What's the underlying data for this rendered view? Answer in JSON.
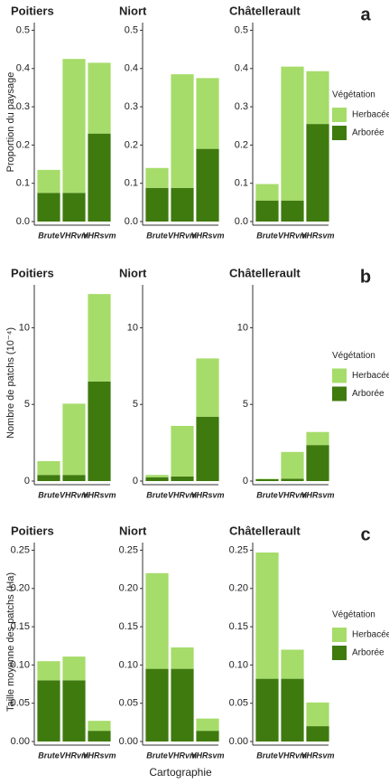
{
  "chart_data": [
    {
      "type": "bar",
      "stacked": true,
      "panel": "a",
      "ylabel": "Proportion du paysage",
      "facets": [
        "Poitiers",
        "Niort",
        "Châtellerault"
      ],
      "categories": [
        "Brute",
        "VHRvm",
        "VHRsvm"
      ],
      "ylim": [
        0,
        0.52
      ],
      "yticks": [
        {
          "value": 0,
          "label": "0.0"
        },
        0.1,
        0.2,
        0.3,
        0.4,
        0.5
      ],
      "legend_title": "Végétation",
      "series": [
        {
          "name": "Arborée",
          "color": "#3f7a0f",
          "values": [
            [
              0.075,
              0.075,
              0.23
            ],
            [
              0.088,
              0.088,
              0.19
            ],
            [
              0.055,
              0.055,
              0.255
            ]
          ]
        },
        {
          "name": "Herbacée",
          "color": "#a6dc6a",
          "values": [
            [
              0.06,
              0.35,
              0.185
            ],
            [
              0.052,
              0.297,
              0.185
            ],
            [
              0.043,
              0.35,
              0.138
            ]
          ]
        }
      ]
    },
    {
      "type": "bar",
      "stacked": true,
      "panel": "b",
      "ylabel": "Nombre de patchs (10⁻⁴)",
      "facets": [
        "Poitiers",
        "Niort",
        "Châtellerault"
      ],
      "categories": [
        "Brute",
        "VHRvm",
        "VHRsvm"
      ],
      "ylim": [
        0,
        12.8
      ],
      "yticks": [
        0,
        5,
        10
      ],
      "legend_title": "Végétation",
      "series": [
        {
          "name": "Arborée",
          "color": "#3f7a0f",
          "values": [
            [
              0.4,
              0.4,
              6.5
            ],
            [
              0.25,
              0.3,
              4.2
            ],
            [
              0.12,
              0.15,
              2.35
            ]
          ]
        },
        {
          "name": "Herbacée",
          "color": "#a6dc6a",
          "values": [
            [
              0.9,
              4.65,
              5.7
            ],
            [
              0.15,
              3.3,
              3.8
            ],
            [
              0.03,
              1.75,
              0.85
            ]
          ]
        }
      ]
    },
    {
      "type": "bar",
      "stacked": true,
      "panel": "c",
      "ylabel": "Taille moyenne des patchs (Ha)",
      "xlabel": "Cartographie",
      "facets": [
        "Poitiers",
        "Niort",
        "Châtellerault"
      ],
      "categories": [
        "Brute",
        "VHRvm",
        "VHRsvm"
      ],
      "ylim": [
        0,
        0.26
      ],
      "yticks": [
        {
          "value": 0,
          "label": "0.00"
        },
        0.05,
        {
          "value": 0.1,
          "label": "0.10"
        },
        0.15,
        {
          "value": 0.2,
          "label": "0.20"
        },
        0.25
      ],
      "legend_title": "Végétation",
      "series": [
        {
          "name": "Arborée",
          "color": "#3f7a0f",
          "values": [
            [
              0.08,
              0.08,
              0.014
            ],
            [
              0.095,
              0.095,
              0.014
            ],
            [
              0.082,
              0.082,
              0.02
            ]
          ]
        },
        {
          "name": "Herbacée",
          "color": "#a6dc6a",
          "values": [
            [
              0.025,
              0.031,
              0.013
            ],
            [
              0.125,
              0.028,
              0.016
            ],
            [
              0.165,
              0.038,
              0.031
            ]
          ]
        }
      ]
    }
  ]
}
